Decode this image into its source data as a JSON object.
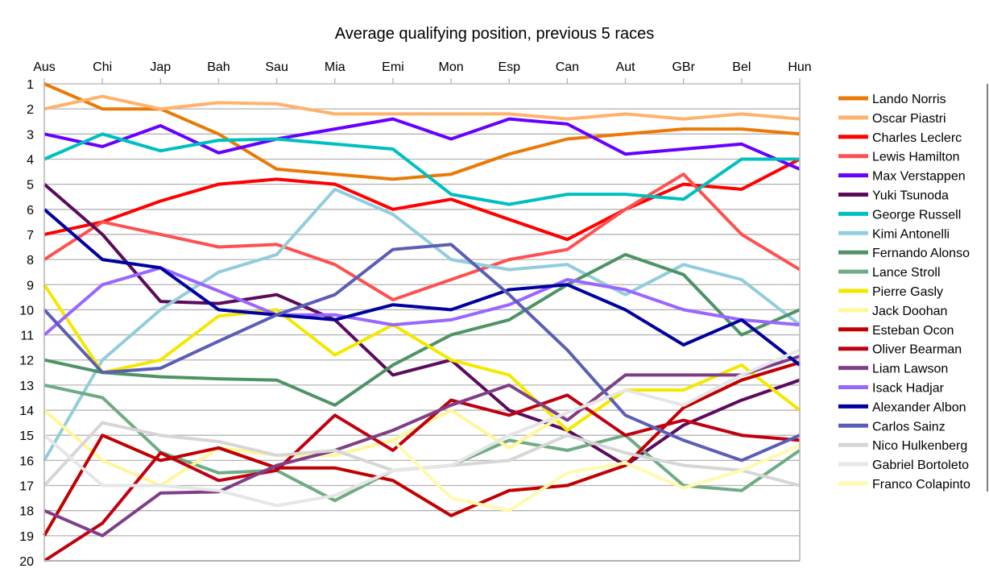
{
  "chart_data": {
    "type": "line",
    "title": "Average qualifying position, previous 5 races",
    "xlabel": "",
    "ylabel": "",
    "ylim": [
      1,
      20
    ],
    "y_inverted": true,
    "y_ticks": [
      1,
      2,
      3,
      4,
      5,
      6,
      7,
      8,
      9,
      10,
      11,
      12,
      13,
      14,
      15,
      16,
      17,
      18,
      19,
      20
    ],
    "grid": true,
    "legend_position": "right",
    "categories": [
      "Aus",
      "Chi",
      "Jap",
      "Bah",
      "Sau",
      "Mia",
      "Emi",
      "Mon",
      "Esp",
      "Can",
      "Aut",
      "GBr",
      "Bel",
      "Hun"
    ],
    "series": [
      {
        "name": "Lando Norris",
        "color": "#e97a06",
        "values": [
          1,
          2,
          2,
          3,
          4.4,
          4.6,
          4.8,
          4.6,
          3.8,
          3.2,
          3,
          2.8,
          2.8,
          3
        ]
      },
      {
        "name": "Oscar Piastri",
        "color": "#ffb26b",
        "values": [
          2,
          1.5,
          2,
          1.75,
          1.8,
          2.2,
          2.2,
          2.2,
          2.2,
          2.4,
          2.2,
          2.4,
          2.2,
          2.4
        ]
      },
      {
        "name": "Charles Leclerc",
        "color": "#ff0000",
        "values": [
          7,
          6.5,
          5.67,
          5,
          4.8,
          5,
          6,
          5.6,
          6.4,
          7.2,
          6,
          5,
          5.2,
          4
        ]
      },
      {
        "name": "Lewis Hamilton",
        "color": "#ff5050",
        "values": [
          8,
          6.5,
          7,
          7.5,
          7.4,
          8.2,
          9.6,
          8.8,
          8,
          7.6,
          6,
          4.6,
          7,
          8.4
        ]
      },
      {
        "name": "Max Verstappen",
        "color": "#6600ff",
        "values": [
          3,
          3.5,
          2.67,
          3.75,
          3.2,
          2.8,
          2.4,
          3.2,
          2.4,
          2.6,
          3.8,
          3.6,
          3.4,
          4.4
        ]
      },
      {
        "name": "Yuki Tsunoda",
        "color": "#5c0a5c",
        "values": [
          5,
          7,
          9.67,
          9.75,
          9.4,
          10.4,
          12.6,
          12,
          14,
          14.8,
          16.2,
          14.6,
          13.6,
          12.8
        ]
      },
      {
        "name": "George Russell",
        "color": "#00bfbf",
        "values": [
          4,
          3,
          3.67,
          3.25,
          3.2,
          3.4,
          3.6,
          5.4,
          5.8,
          5.4,
          5.4,
          5.6,
          4,
          4
        ]
      },
      {
        "name": "Kimi Antonelli",
        "color": "#92cddc",
        "values": [
          16,
          12,
          10,
          8.5,
          7.8,
          5.2,
          6.2,
          8,
          8.4,
          8.2,
          9.4,
          8.2,
          8.8,
          10.6
        ]
      },
      {
        "name": "Fernando Alonso",
        "color": "#4e9366",
        "values": [
          12,
          12.5,
          12.67,
          12.75,
          12.8,
          13.8,
          12.2,
          11,
          10.4,
          9,
          7.8,
          8.6,
          11,
          10
        ]
      },
      {
        "name": "Lance Stroll",
        "color": "#6fab84",
        "values": [
          13,
          13.5,
          15.67,
          16.5,
          16.4,
          17.6,
          16.4,
          16.2,
          15.2,
          15.6,
          15,
          17,
          17.2,
          15.6
        ]
      },
      {
        "name": "Pierre Gasly",
        "color": "#f5e800",
        "values": [
          9,
          12.5,
          12,
          10.25,
          10,
          11.8,
          10.6,
          12,
          12.6,
          14.8,
          13.2,
          13.2,
          12.2,
          14
        ]
      },
      {
        "name": "Jack Doohan",
        "color": "#fff799",
        "values": [
          14,
          16,
          17,
          15.5,
          15.8,
          15.8,
          15.2,
          14,
          15.5,
          14.1,
          null,
          null,
          null,
          null
        ]
      },
      {
        "name": "Esteban Ocon",
        "color": "#c00000",
        "values": [
          19,
          15,
          16,
          15.5,
          16.3,
          16.3,
          16.8,
          18.2,
          17.2,
          17,
          16.2,
          13.9,
          12.8,
          12.1
        ]
      },
      {
        "name": "Oliver Bearman",
        "color": "#c00010",
        "values": [
          20,
          18.5,
          15.7,
          16.8,
          16.4,
          14.2,
          15.6,
          13.6,
          14.2,
          13.4,
          15,
          14.4,
          15,
          15.2
        ]
      },
      {
        "name": "Liam Lawson",
        "color": "#7f3f87",
        "values": [
          18,
          19,
          17.3,
          17.25,
          16.2,
          15.6,
          14.8,
          13.8,
          13,
          14.4,
          12.6,
          12.6,
          12.6,
          11.85
        ]
      },
      {
        "name": "Isack Hadjar",
        "color": "#9966ff",
        "values": [
          11,
          9,
          8.33,
          9.25,
          10.2,
          10.2,
          10.6,
          10.4,
          9.8,
          8.8,
          9.2,
          10,
          10.4,
          10.6
        ]
      },
      {
        "name": "Alexander Albon",
        "color": "#0000a0",
        "values": [
          6,
          8,
          8.33,
          10,
          10.2,
          10.4,
          9.8,
          10,
          9.2,
          9,
          10,
          11.4,
          10.4,
          12.2
        ]
      },
      {
        "name": "Carlos Sainz",
        "color": "#5b5eb5",
        "values": [
          10,
          12.5,
          12.33,
          11.25,
          10.2,
          9.4,
          7.6,
          7.4,
          9.4,
          11.6,
          14.2,
          15.2,
          16,
          15
        ]
      },
      {
        "name": "Nico Hulkenberg",
        "color": "#d6d6d6",
        "values": [
          17,
          14.5,
          15,
          15.25,
          15.8,
          15.6,
          16.4,
          16.2,
          16,
          15,
          15.7,
          16.2,
          16.4,
          17
        ]
      },
      {
        "name": "Gabriel Bortoleto",
        "color": "#e6e6e6",
        "values": [
          15,
          17,
          17,
          17.2,
          17.8,
          17.4,
          16.4,
          16.2,
          15,
          14.1,
          13.2,
          13.8,
          12.6,
          11.6
        ]
      },
      {
        "name": "Franco Colapinto",
        "color": "#fffaaf",
        "values": [
          null,
          null,
          null,
          null,
          null,
          null,
          15.2,
          17.5,
          18,
          16.5,
          16.1,
          17.1,
          16.4,
          15.4
        ]
      }
    ]
  }
}
